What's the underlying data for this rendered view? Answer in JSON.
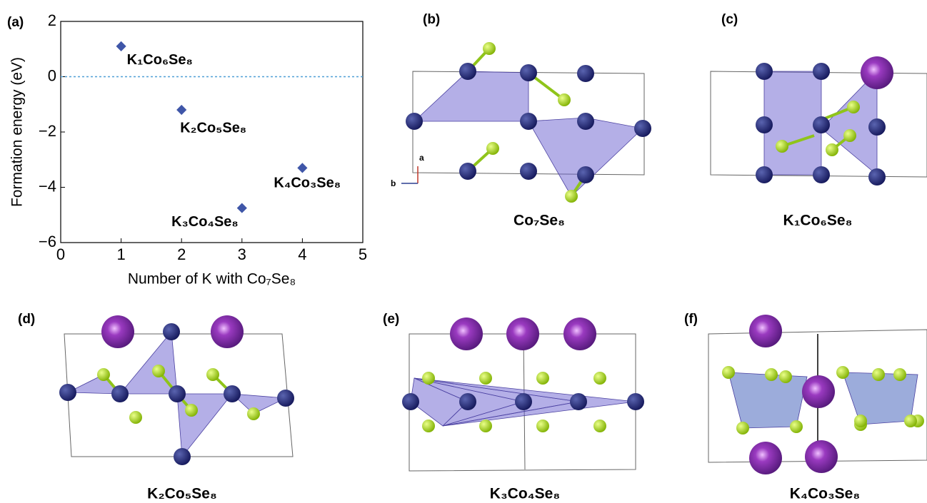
{
  "chart_data": {
    "type": "scatter",
    "panel_label": "(a)",
    "x": [
      1,
      2,
      3,
      4
    ],
    "values": [
      1.1,
      -1.2,
      -4.75,
      -3.3
    ],
    "point_labels": [
      "K₁Co₆Se₈",
      "K₂Co₅Se₈",
      "K₃Co₄Se₈",
      "K₄Co₃Se₈"
    ],
    "color": "#3f56a8",
    "xlabel": "Number of K with Co₇Se₈",
    "ylabel": "Formation energy (eV)",
    "xlim": [
      0,
      5
    ],
    "xticks": [
      0,
      1,
      2,
      3,
      4,
      5
    ],
    "ylim": [
      -6,
      2
    ],
    "yticks": [
      {
        "value": -6,
        "label": "−6"
      },
      {
        "value": -4,
        "label": "−4"
      },
      {
        "value": -2,
        "label": "−2"
      },
      0,
      2
    ],
    "reference_line": 0,
    "reference_color": "#4f9fd6"
  },
  "panels": [
    {
      "label": "(b)",
      "caption": "Co₇Se₈",
      "axis_a": "a",
      "axis_b": "b"
    },
    {
      "label": "(c)",
      "caption": "K₁Co₆Se₈"
    },
    {
      "label": "(d)",
      "caption": "K₂Co₅Se₈"
    },
    {
      "label": "(e)",
      "caption": "K₃Co₄Se₈"
    },
    {
      "label": "(f)",
      "caption": "K₄Co₃Se₈"
    }
  ]
}
